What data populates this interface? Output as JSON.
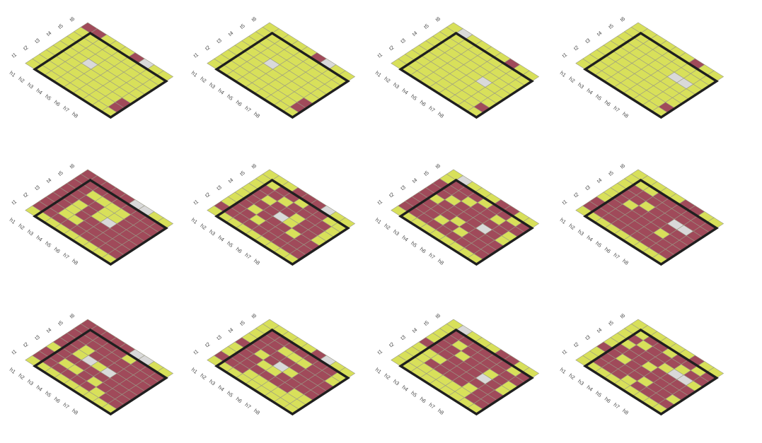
{
  "colors": {
    "background": "#ffffff",
    "open": "#d8e05a",
    "blocked": "#a04a5a",
    "target": "#d9d9d9",
    "grid": "#9a9a86",
    "frame": "#1f1f1f",
    "label": "#4a4a4a"
  },
  "grid": {
    "rows": 9,
    "cols": 9
  },
  "axis": {
    "top_labels": [
      "t1",
      "t2",
      "t3",
      "t4",
      "t5",
      "t6"
    ],
    "side_labels": [
      "h1",
      "h2",
      "h3",
      "h4",
      "h5",
      "h6",
      "h7",
      "h8"
    ]
  },
  "legend_codes": {
    "0": "open",
    "1": "blocked",
    "2": "target"
  },
  "panels": [
    {
      "rows": [
        "110001200",
        "000000000",
        "000000000",
        "000000000",
        "000200000",
        "000000000",
        "000000001",
        "000000001",
        "000000000"
      ]
    },
    {
      "rows": [
        "000001200",
        "000000000",
        "000000000",
        "000000000",
        "000200000",
        "000000000",
        "000000001",
        "000000001",
        "000000000"
      ]
    },
    {
      "rows": [
        "020000100",
        "000000000",
        "000000000",
        "000000000",
        "000000200",
        "000000000",
        "000000000",
        "000000001",
        "000000000"
      ]
    },
    {
      "rows": [
        "000000100",
        "000000000",
        "000000000",
        "000000220",
        "000000000",
        "000000000",
        "000000000",
        "000000001",
        "000000000"
      ]
    },
    {
      "rows": [
        "111112200",
        "111111111",
        "110000111",
        "111100111",
        "110102111",
        "110111111",
        "110011111",
        "111111111",
        "000000000"
      ]
    },
    {
      "rows": [
        "000111200",
        "001101100",
        "011011110",
        "010110110",
        "011120110",
        "010111011",
        "011011111",
        "111111111",
        "000000000"
      ]
    },
    {
      "rows": [
        "020001100",
        "011101101",
        "111011011",
        "110111110",
        "101111210",
        "111101111",
        "111010111",
        "111111111",
        "000000000"
      ]
    },
    {
      "rows": [
        "000001100",
        "000111111",
        "011111111",
        "011011221",
        "010111111",
        "011111011",
        "111111111",
        "111111111",
        "000000000"
      ]
    },
    {
      "rows": [
        "111112200",
        "111110111",
        "111111111",
        "110111111",
        "110202111",
        "011111111",
        "110010111",
        "111111011",
        "000000000"
      ]
    },
    {
      "rows": [
        "000001200",
        "011111110",
        "011000110",
        "011111111",
        "110120111",
        "011001111",
        "011111100",
        "111000000",
        "000000000"
      ]
    },
    {
      "rows": [
        "020001100",
        "011111101",
        "010111111",
        "011011010",
        "111111210",
        "000111111",
        "001111011",
        "000000011",
        "000000000"
      ]
    },
    {
      "rows": [
        "000000100",
        "001101101",
        "010111011",
        "001110220",
        "011101111",
        "110111111",
        "011110110",
        "011101111",
        "000000000"
      ]
    }
  ]
}
